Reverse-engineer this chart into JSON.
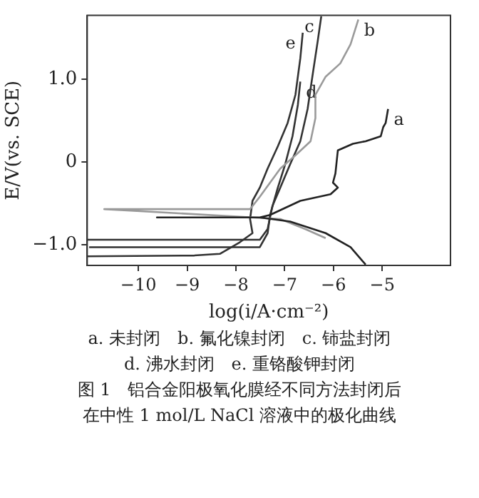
{
  "chart_data": {
    "type": "line",
    "xlabel": "log(i/A·cm⁻²)",
    "ylabel": "E/V(vs. SCE)",
    "xlim": [
      -11.05,
      -3.6
    ],
    "ylim": [
      -1.25,
      1.77
    ],
    "xticks": [
      {
        "value": -10,
        "label": "−10"
      },
      {
        "value": -9,
        "label": "−9"
      },
      {
        "value": -8,
        "label": "−8"
      },
      {
        "value": -7,
        "label": "−7"
      },
      {
        "value": -6,
        "label": "−6"
      },
      {
        "value": -5,
        "label": "−5"
      }
    ],
    "yticks": [
      {
        "value": -1,
        "label": "−1.0"
      },
      {
        "value": 0,
        "label": "0"
      },
      {
        "value": 1,
        "label": "1.0"
      }
    ],
    "grid": false,
    "legend": false,
    "marker": "none",
    "series": [
      {
        "name": "a",
        "color": "#222222",
        "x": [
          -5.34,
          -5.65,
          -6.16,
          -6.89,
          -7.51,
          -9.62,
          -7.51,
          -7.3,
          -6.68,
          -6.06,
          -5.91,
          -6.01,
          -5.96,
          -5.91,
          -5.6,
          -5.34,
          -5.03,
          -4.98,
          -4.93,
          -4.88
        ],
        "values": [
          -1.24,
          -1.03,
          -0.86,
          -0.72,
          -0.67,
          -0.67,
          -0.67,
          -0.64,
          -0.47,
          -0.39,
          -0.31,
          -0.25,
          -0.14,
          0.14,
          0.22,
          0.25,
          0.31,
          0.42,
          0.47,
          0.64
        ]
      },
      {
        "name": "b",
        "color": "#9a9a9a",
        "x": [
          -6.16,
          -6.58,
          -7.09,
          -10.7,
          -7.71,
          -7.51,
          -7.3,
          -7.09,
          -6.78,
          -6.47,
          -6.37,
          -6.37,
          -6.16,
          -5.86,
          -5.65,
          -5.49
        ],
        "values": [
          -0.92,
          -0.81,
          -0.69,
          -0.57,
          -0.57,
          -0.42,
          -0.25,
          -0.08,
          0.08,
          0.25,
          0.53,
          0.81,
          1.03,
          1.19,
          1.42,
          1.72
        ]
      },
      {
        "name": "c",
        "color": "#333333",
        "x": [
          -11.05,
          -7.51,
          -7.35,
          -7.25,
          -7.09,
          -6.89,
          -6.68,
          -6.53,
          -6.42,
          -6.32,
          -6.25
        ],
        "values": [
          -0.94,
          -0.94,
          -0.81,
          -0.53,
          -0.31,
          -0.03,
          0.25,
          0.64,
          1.08,
          1.47,
          1.76
        ]
      },
      {
        "name": "d",
        "color": "#333333",
        "x": [
          -11.01,
          -7.51,
          -7.35,
          -7.3,
          -7.14,
          -6.99,
          -6.84,
          -6.73,
          -6.68
        ],
        "values": [
          -1.03,
          -1.03,
          -0.86,
          -0.64,
          -0.31,
          -0.03,
          0.31,
          0.69,
          0.97
        ]
      },
      {
        "name": "e",
        "color": "#333333",
        "x": [
          -11.05,
          -8.85,
          -8.33,
          -7.92,
          -7.66,
          -7.71,
          -7.66,
          -7.51,
          -7.35,
          -7.14,
          -6.94,
          -6.78,
          -6.68,
          -6.63
        ],
        "values": [
          -1.14,
          -1.13,
          -1.11,
          -0.97,
          -0.86,
          -0.69,
          -0.47,
          -0.31,
          -0.08,
          0.19,
          0.47,
          0.81,
          1.25,
          1.56
        ]
      }
    ],
    "annotations": [
      "a. 未封闭　b. 氟化镍封闭　c. 铈盐封闭",
      "d. 沸水封闭　e. 重铬酸钾封闭",
      "图 1　铝合金阳极氧化膜经不同方法封闭后",
      "在中性 1 mol/L NaCl 溶液中的极化曲线"
    ]
  }
}
